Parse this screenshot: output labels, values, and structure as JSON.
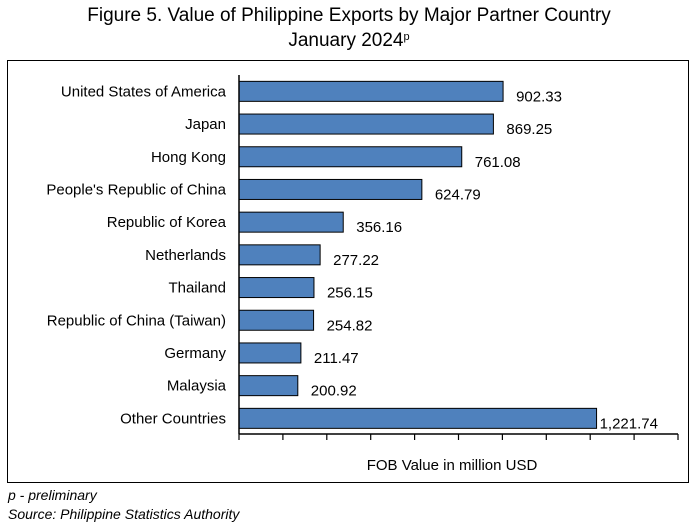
{
  "chart_data": {
    "type": "bar",
    "orientation": "horizontal",
    "title": "Figure 5. Value of Philippine Exports by Major Partner Country",
    "subtitle": "January 2024",
    "subtitle_superscript": "p",
    "xlabel": "FOB Value in million USD",
    "ylabel": "",
    "xlim": [
      0,
      1500
    ],
    "x_tick_step": 150,
    "x_tick_labels_shown": false,
    "grid": false,
    "legend": "none",
    "bar_color": "#4F81BD",
    "categories": [
      "United States of America",
      "Japan",
      "Hong Kong",
      "People's Republic of China",
      "Republic of Korea",
      "Netherlands",
      "Thailand",
      "Republic of China (Taiwan)",
      "Germany",
      "Malaysia",
      "Other Countries"
    ],
    "values": [
      902.33,
      869.25,
      761.08,
      624.79,
      356.16,
      277.22,
      256.15,
      254.82,
      211.47,
      200.92,
      1221.74
    ],
    "data_labels": [
      "902.33",
      "869.25",
      "761.08",
      "624.79",
      "356.16",
      "277.22",
      "256.15",
      "254.82",
      "211.47",
      "200.92",
      "1,221.74"
    ]
  },
  "footnotes": {
    "note": "p - preliminary",
    "source": "Source: Philippine Statistics Authority"
  }
}
